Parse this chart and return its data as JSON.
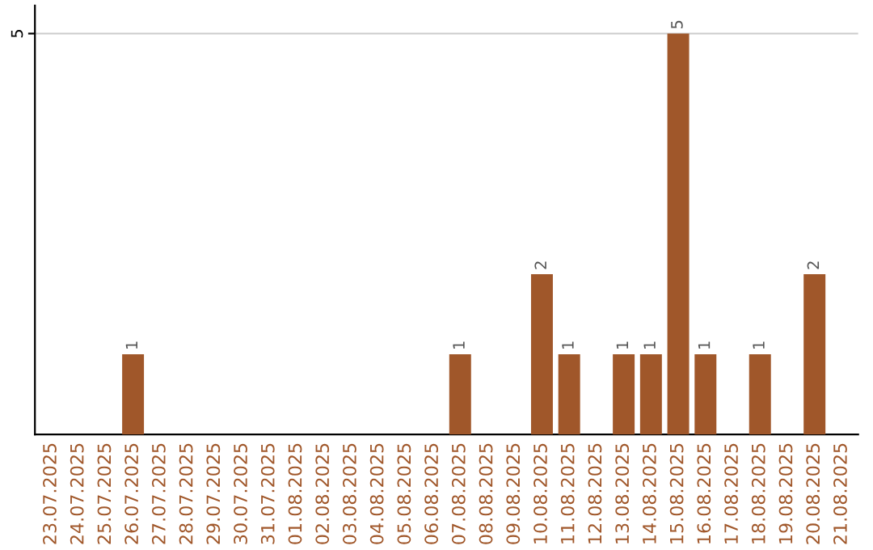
{
  "chart_data": {
    "type": "bar",
    "categories": [
      "23.07.2025",
      "24.07.2025",
      "25.07.2025",
      "26.07.2025",
      "27.07.2025",
      "28.07.2025",
      "29.07.2025",
      "30.07.2025",
      "31.07.2025",
      "01.08.2025",
      "02.08.2025",
      "03.08.2025",
      "04.08.2025",
      "05.08.2025",
      "06.08.2025",
      "07.08.2025",
      "08.08.2025",
      "09.08.2025",
      "10.08.2025",
      "11.08.2025",
      "12.08.2025",
      "13.08.2025",
      "14.08.2025",
      "15.08.2025",
      "16.08.2025",
      "17.08.2025",
      "18.08.2025",
      "19.08.2025",
      "20.08.2025",
      "21.08.2025"
    ],
    "values": [
      0,
      0,
      0,
      1,
      0,
      0,
      0,
      0,
      0,
      0,
      0,
      0,
      0,
      0,
      0,
      1,
      0,
      0,
      2,
      1,
      0,
      1,
      1,
      5,
      1,
      0,
      1,
      0,
      2,
      0
    ],
    "value_labels": [
      null,
      null,
      null,
      "1",
      null,
      null,
      null,
      null,
      null,
      null,
      null,
      null,
      null,
      null,
      null,
      "1",
      null,
      null,
      "2",
      "1",
      null,
      "1",
      "1",
      "5",
      "1",
      null,
      "1",
      null,
      "2",
      null
    ],
    "color": "#a0572a",
    "ylim": [
      0,
      5.35
    ],
    "yticks": [
      5
    ],
    "grid": "y"
  }
}
